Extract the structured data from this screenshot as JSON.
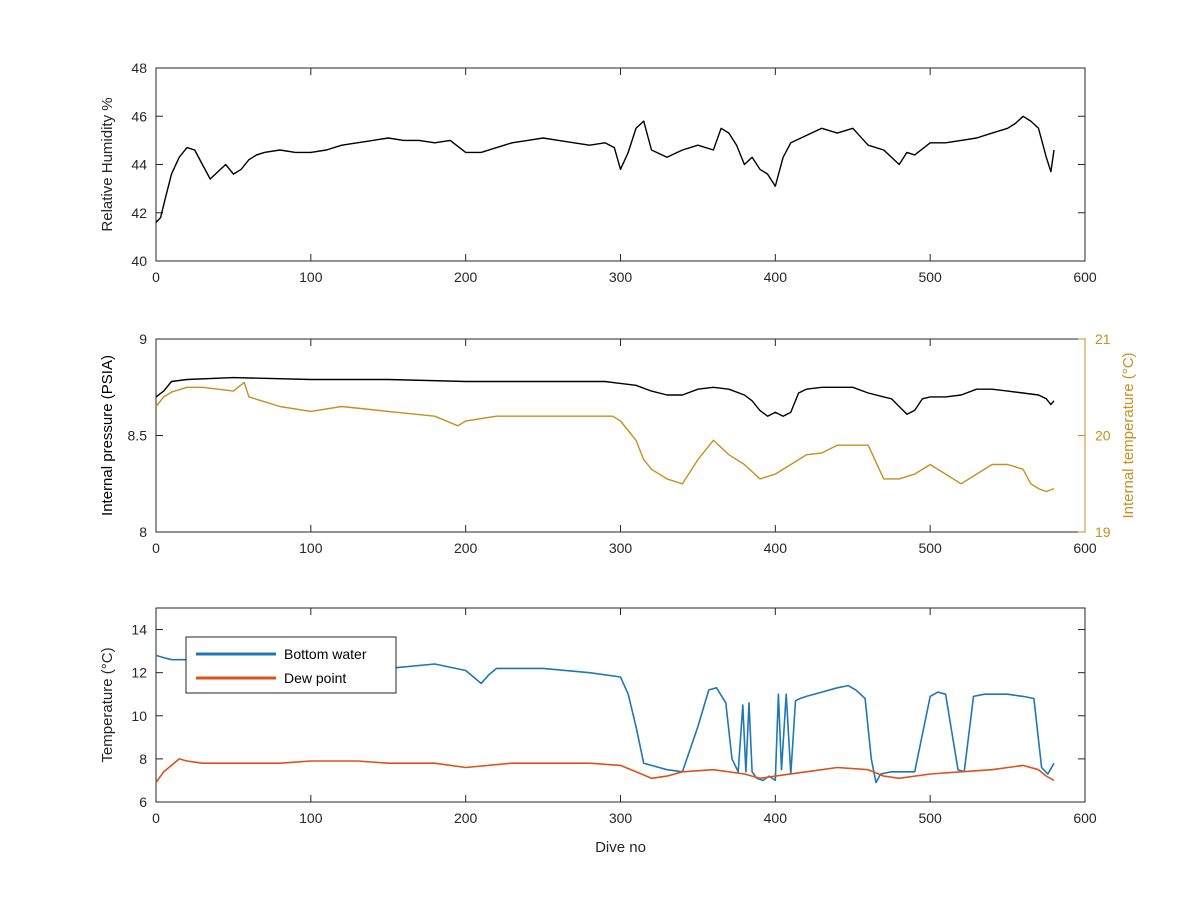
{
  "chart_data": [
    {
      "type": "line",
      "xlabel": "",
      "ylabel": "Relative Humidity %",
      "xlim": [
        0,
        600
      ],
      "ylim": [
        40,
        48
      ],
      "xticks": [
        "0",
        "100",
        "200",
        "300",
        "400",
        "500",
        "600"
      ],
      "yticks": [
        "40",
        "42",
        "44",
        "46",
        "48"
      ],
      "colors": {
        "humidity": "#000000"
      },
      "series": [
        {
          "name": "",
          "x": [
            0,
            3,
            6,
            10,
            15,
            20,
            25,
            30,
            35,
            40,
            45,
            50,
            55,
            60,
            65,
            70,
            80,
            90,
            100,
            110,
            120,
            130,
            140,
            150,
            160,
            170,
            180,
            190,
            200,
            210,
            220,
            230,
            240,
            250,
            260,
            270,
            280,
            290,
            296,
            300,
            305,
            310,
            315,
            320,
            330,
            340,
            350,
            360,
            365,
            370,
            375,
            380,
            385,
            390,
            395,
            400,
            405,
            410,
            420,
            430,
            440,
            450,
            460,
            470,
            475,
            480,
            485,
            490,
            500,
            510,
            520,
            530,
            540,
            550,
            555,
            560,
            565,
            570,
            575,
            578,
            580
          ],
          "values": [
            41.6,
            41.8,
            42.6,
            43.6,
            44.3,
            44.7,
            44.6,
            44.0,
            43.4,
            43.7,
            44.0,
            43.6,
            43.8,
            44.2,
            44.4,
            44.5,
            44.6,
            44.5,
            44.5,
            44.6,
            44.8,
            44.9,
            45.0,
            45.1,
            45.0,
            45.0,
            44.9,
            45.0,
            44.5,
            44.5,
            44.7,
            44.9,
            45.0,
            45.1,
            45.0,
            44.9,
            44.8,
            44.9,
            44.7,
            43.8,
            44.5,
            45.5,
            45.8,
            44.6,
            44.3,
            44.6,
            44.8,
            44.6,
            45.5,
            45.3,
            44.8,
            44.0,
            44.3,
            43.8,
            43.6,
            43.1,
            44.3,
            44.9,
            45.2,
            45.5,
            45.3,
            45.5,
            44.8,
            44.6,
            44.3,
            44.0,
            44.5,
            44.4,
            44.9,
            44.9,
            45.0,
            45.1,
            45.3,
            45.5,
            45.7,
            46.0,
            45.8,
            45.5,
            44.3,
            43.7,
            44.6
          ]
        }
      ]
    },
    {
      "type": "line",
      "xlabel": "",
      "ylabel": "Internal pressure (PSIA)",
      "ylabel_right": "Internal temperature (°C)",
      "xlim": [
        0,
        600
      ],
      "ylim": [
        8,
        9
      ],
      "ylim_right": [
        19,
        21
      ],
      "xticks": [
        "0",
        "100",
        "200",
        "300",
        "400",
        "500",
        "600"
      ],
      "yticks": [
        "8",
        "8.5",
        "9"
      ],
      "yticks_right": [
        "19",
        "20",
        "21"
      ],
      "colors": {
        "pressure": "#000000",
        "temperature": "#c59020",
        "right_axis": "#c59020"
      },
      "series": [
        {
          "name": "",
          "axis": "left",
          "x": [
            0,
            5,
            10,
            20,
            50,
            100,
            150,
            200,
            250,
            290,
            300,
            310,
            320,
            330,
            340,
            350,
            360,
            370,
            380,
            385,
            390,
            395,
            400,
            405,
            410,
            415,
            420,
            430,
            440,
            450,
            460,
            470,
            475,
            480,
            485,
            490,
            495,
            500,
            510,
            520,
            530,
            540,
            550,
            560,
            570,
            575,
            578,
            580
          ],
          "values": [
            8.7,
            8.73,
            8.78,
            8.79,
            8.8,
            8.79,
            8.79,
            8.78,
            8.78,
            8.78,
            8.77,
            8.76,
            8.73,
            8.71,
            8.71,
            8.74,
            8.75,
            8.74,
            8.71,
            8.68,
            8.63,
            8.6,
            8.62,
            8.6,
            8.62,
            8.72,
            8.74,
            8.75,
            8.75,
            8.75,
            8.72,
            8.7,
            8.69,
            8.65,
            8.61,
            8.63,
            8.69,
            8.7,
            8.7,
            8.71,
            8.74,
            8.74,
            8.73,
            8.72,
            8.71,
            8.69,
            8.66,
            8.68
          ]
        },
        {
          "name": "",
          "axis": "right",
          "x": [
            0,
            5,
            10,
            20,
            30,
            40,
            50,
            57,
            60,
            70,
            80,
            100,
            120,
            150,
            180,
            195,
            200,
            220,
            250,
            280,
            295,
            300,
            310,
            315,
            320,
            330,
            340,
            350,
            360,
            370,
            380,
            390,
            400,
            410,
            420,
            430,
            440,
            450,
            460,
            470,
            480,
            490,
            500,
            510,
            520,
            530,
            540,
            550,
            560,
            565,
            570,
            575,
            580
          ],
          "values": [
            20.3,
            20.4,
            20.45,
            20.5,
            20.5,
            20.48,
            20.46,
            20.55,
            20.4,
            20.35,
            20.3,
            20.25,
            20.3,
            20.25,
            20.2,
            20.1,
            20.15,
            20.2,
            20.2,
            20.2,
            20.2,
            20.15,
            19.95,
            19.75,
            19.65,
            19.55,
            19.5,
            19.75,
            19.95,
            19.8,
            19.7,
            19.55,
            19.6,
            19.7,
            19.8,
            19.82,
            19.9,
            19.9,
            19.9,
            19.55,
            19.55,
            19.6,
            19.7,
            19.6,
            19.5,
            19.6,
            19.7,
            19.7,
            19.65,
            19.5,
            19.45,
            19.42,
            19.45
          ]
        }
      ]
    },
    {
      "type": "line",
      "xlabel": "Dive no",
      "ylabel": "Temperature (°C)",
      "xlim": [
        0,
        600
      ],
      "ylim": [
        6,
        15
      ],
      "xticks": [
        "0",
        "100",
        "200",
        "300",
        "400",
        "500",
        "600"
      ],
      "yticks": [
        "6",
        "8",
        "10",
        "12",
        "14"
      ],
      "legend_position": "top-left",
      "colors": {
        "bottom_water": "#1f77b4",
        "dew_point": "#d95319"
      },
      "series": [
        {
          "name": "Bottom water",
          "x": [
            0,
            5,
            10,
            20,
            40,
            80,
            120,
            150,
            180,
            200,
            210,
            215,
            220,
            230,
            250,
            280,
            300,
            305,
            310,
            315,
            320,
            330,
            340,
            350,
            357,
            362,
            368,
            372,
            376,
            379,
            381,
            383,
            385,
            388,
            392,
            396,
            400,
            402,
            404,
            407,
            410,
            413,
            416,
            420,
            430,
            440,
            447,
            452,
            458,
            462,
            465,
            468,
            475,
            490,
            500,
            505,
            510,
            518,
            522,
            528,
            535,
            550,
            560,
            567,
            572,
            576,
            580
          ],
          "values": [
            12.8,
            12.7,
            12.6,
            12.6,
            12.3,
            12.4,
            12.3,
            12.2,
            12.4,
            12.1,
            11.5,
            11.9,
            12.2,
            12.2,
            12.2,
            12.0,
            11.8,
            11.0,
            9.5,
            7.8,
            7.7,
            7.5,
            7.4,
            9.5,
            11.2,
            11.3,
            10.6,
            8.0,
            7.4,
            10.5,
            7.4,
            10.6,
            7.4,
            7.1,
            7.0,
            7.2,
            7.0,
            11.0,
            7.5,
            11.0,
            7.3,
            10.7,
            10.8,
            10.9,
            11.1,
            11.3,
            11.4,
            11.2,
            10.8,
            8.0,
            6.9,
            7.3,
            7.4,
            7.4,
            10.9,
            11.1,
            11.0,
            7.5,
            7.4,
            10.9,
            11.0,
            11.0,
            10.9,
            10.8,
            7.6,
            7.3,
            7.8
          ]
        },
        {
          "name": "Dew point",
          "x": [
            0,
            5,
            10,
            15,
            20,
            30,
            50,
            80,
            100,
            130,
            150,
            180,
            200,
            230,
            250,
            280,
            300,
            310,
            320,
            330,
            340,
            360,
            380,
            390,
            400,
            420,
            440,
            460,
            470,
            480,
            500,
            520,
            540,
            560,
            570,
            575,
            580
          ],
          "values": [
            6.9,
            7.4,
            7.7,
            8.0,
            7.9,
            7.8,
            7.8,
            7.8,
            7.9,
            7.9,
            7.8,
            7.8,
            7.6,
            7.8,
            7.8,
            7.8,
            7.7,
            7.4,
            7.1,
            7.2,
            7.4,
            7.5,
            7.3,
            7.1,
            7.2,
            7.4,
            7.6,
            7.5,
            7.2,
            7.1,
            7.3,
            7.4,
            7.5,
            7.7,
            7.5,
            7.2,
            7.0
          ]
        }
      ]
    }
  ]
}
